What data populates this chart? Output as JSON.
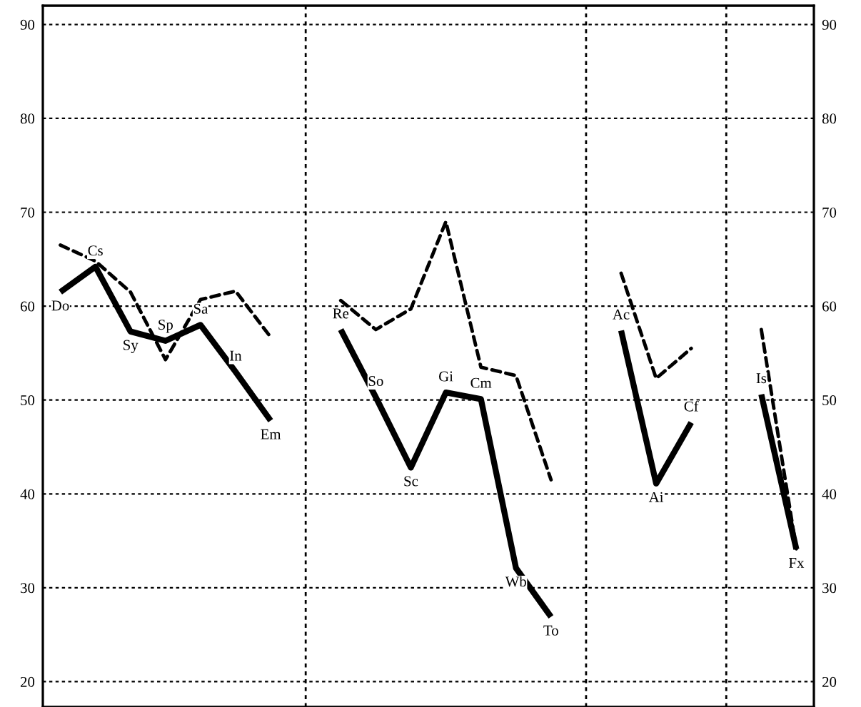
{
  "chart_data": {
    "type": "line",
    "categories": [
      null,
      null,
      null,
      null,
      null,
      null,
      null,
      null,
      null,
      null,
      null,
      null,
      null,
      null,
      null,
      null,
      null,
      null,
      null,
      null,
      null,
      null
    ],
    "series": [
      {
        "color": "#000000",
        "line_style": "solid",
        "values": [
          61.5,
          64.2,
          57.3,
          56.3,
          58.0,
          53.0,
          47.8,
          null,
          57.5,
          50.3,
          42.8,
          50.8,
          50.1,
          32.1,
          26.9,
          null,
          57.4,
          41.1,
          47.6,
          null,
          50.6,
          34.1
        ],
        "value_labels": [
          "Do",
          "Cs",
          "Sy",
          "Sp",
          "Sa",
          "In",
          "Em",
          null,
          "Re",
          "So",
          "Sc",
          "Gi",
          "Cm",
          "Wb",
          "To",
          null,
          "Ac",
          "Ai",
          "Cf",
          null,
          "Is",
          "Fx"
        ]
      },
      {
        "color": "#000000",
        "line_style": "dashed",
        "values": [
          66.5,
          64.8,
          61.5,
          54.3,
          60.7,
          61.6,
          56.7,
          null,
          60.6,
          57.5,
          59.7,
          69.0,
          53.5,
          52.6,
          41.5,
          null,
          63.5,
          52.3,
          55.5,
          null,
          57.5,
          34.1
        ]
      }
    ],
    "ylim": [
      17.3,
      92
    ],
    "yticks": [
      20,
      30,
      40,
      50,
      60,
      70,
      80,
      90
    ],
    "y2lim": [
      17.3,
      92
    ],
    "y2ticks": [
      20,
      30,
      40,
      50,
      60,
      70,
      80,
      90
    ],
    "tick_labels": "y",
    "grid": true,
    "marker": "none"
  }
}
